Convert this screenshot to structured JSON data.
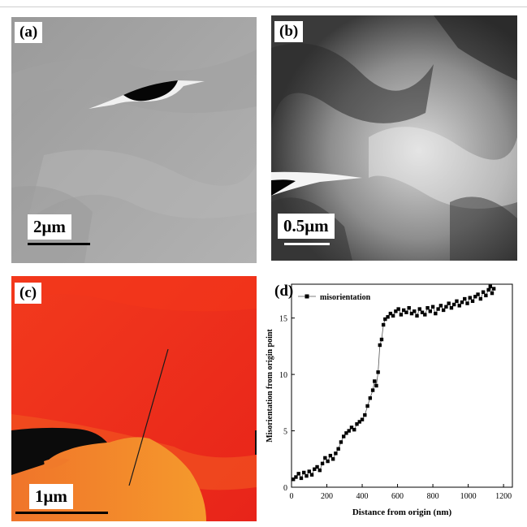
{
  "panels": {
    "a": {
      "label": "(a)",
      "scale_label": "2μm"
    },
    "b": {
      "label": "(b)",
      "scale_label": "0.5μm"
    },
    "c": {
      "label": "(c)",
      "scale_label": "1μm"
    },
    "d": {
      "label": "(d)"
    }
  },
  "chart_data": {
    "type": "line",
    "title": "",
    "xlabel": "Distance from origin (nm)",
    "ylabel": "Misorientation from origin point",
    "xlim": [
      0,
      1250
    ],
    "ylim": [
      0,
      18
    ],
    "xticks": [
      0,
      200,
      400,
      600,
      800,
      1000,
      1200
    ],
    "yticks": [
      0,
      5,
      10,
      15
    ],
    "legend": "top-left",
    "colors": {
      "series": "#000000",
      "line": "#555555"
    },
    "series": [
      {
        "name": "misorientation",
        "x": [
          10,
          25,
          40,
          55,
          70,
          85,
          100,
          115,
          130,
          145,
          160,
          175,
          190,
          205,
          220,
          235,
          250,
          265,
          280,
          295,
          310,
          325,
          340,
          355,
          370,
          385,
          400,
          415,
          430,
          445,
          460,
          470,
          480,
          490,
          500,
          510,
          520,
          530,
          545,
          560,
          575,
          590,
          605,
          620,
          635,
          650,
          665,
          680,
          695,
          710,
          725,
          740,
          755,
          770,
          785,
          800,
          815,
          830,
          845,
          860,
          875,
          890,
          905,
          920,
          935,
          950,
          965,
          980,
          995,
          1010,
          1025,
          1040,
          1055,
          1070,
          1085,
          1100,
          1115,
          1125,
          1135,
          1145
        ],
        "y": [
          0.7,
          0.9,
          1.2,
          0.8,
          1.3,
          1.0,
          1.4,
          1.1,
          1.6,
          1.8,
          1.5,
          2.1,
          2.6,
          2.3,
          2.8,
          2.5,
          3.0,
          3.4,
          4.0,
          4.5,
          4.8,
          5.0,
          5.3,
          5.1,
          5.6,
          5.8,
          6.0,
          6.4,
          7.2,
          7.9,
          8.6,
          9.4,
          9.0,
          10.2,
          12.6,
          13.1,
          14.4,
          14.9,
          15.1,
          15.4,
          15.2,
          15.6,
          15.8,
          15.3,
          15.7,
          15.5,
          15.9,
          15.4,
          15.6,
          15.2,
          15.8,
          15.5,
          15.3,
          15.9,
          15.6,
          16.0,
          15.4,
          15.8,
          16.1,
          15.7,
          16.0,
          16.3,
          15.9,
          16.2,
          16.5,
          16.1,
          16.4,
          16.7,
          16.3,
          16.8,
          16.5,
          16.9,
          17.1,
          16.7,
          17.3,
          17.0,
          17.5,
          17.8,
          17.2,
          17.6
        ]
      }
    ]
  }
}
